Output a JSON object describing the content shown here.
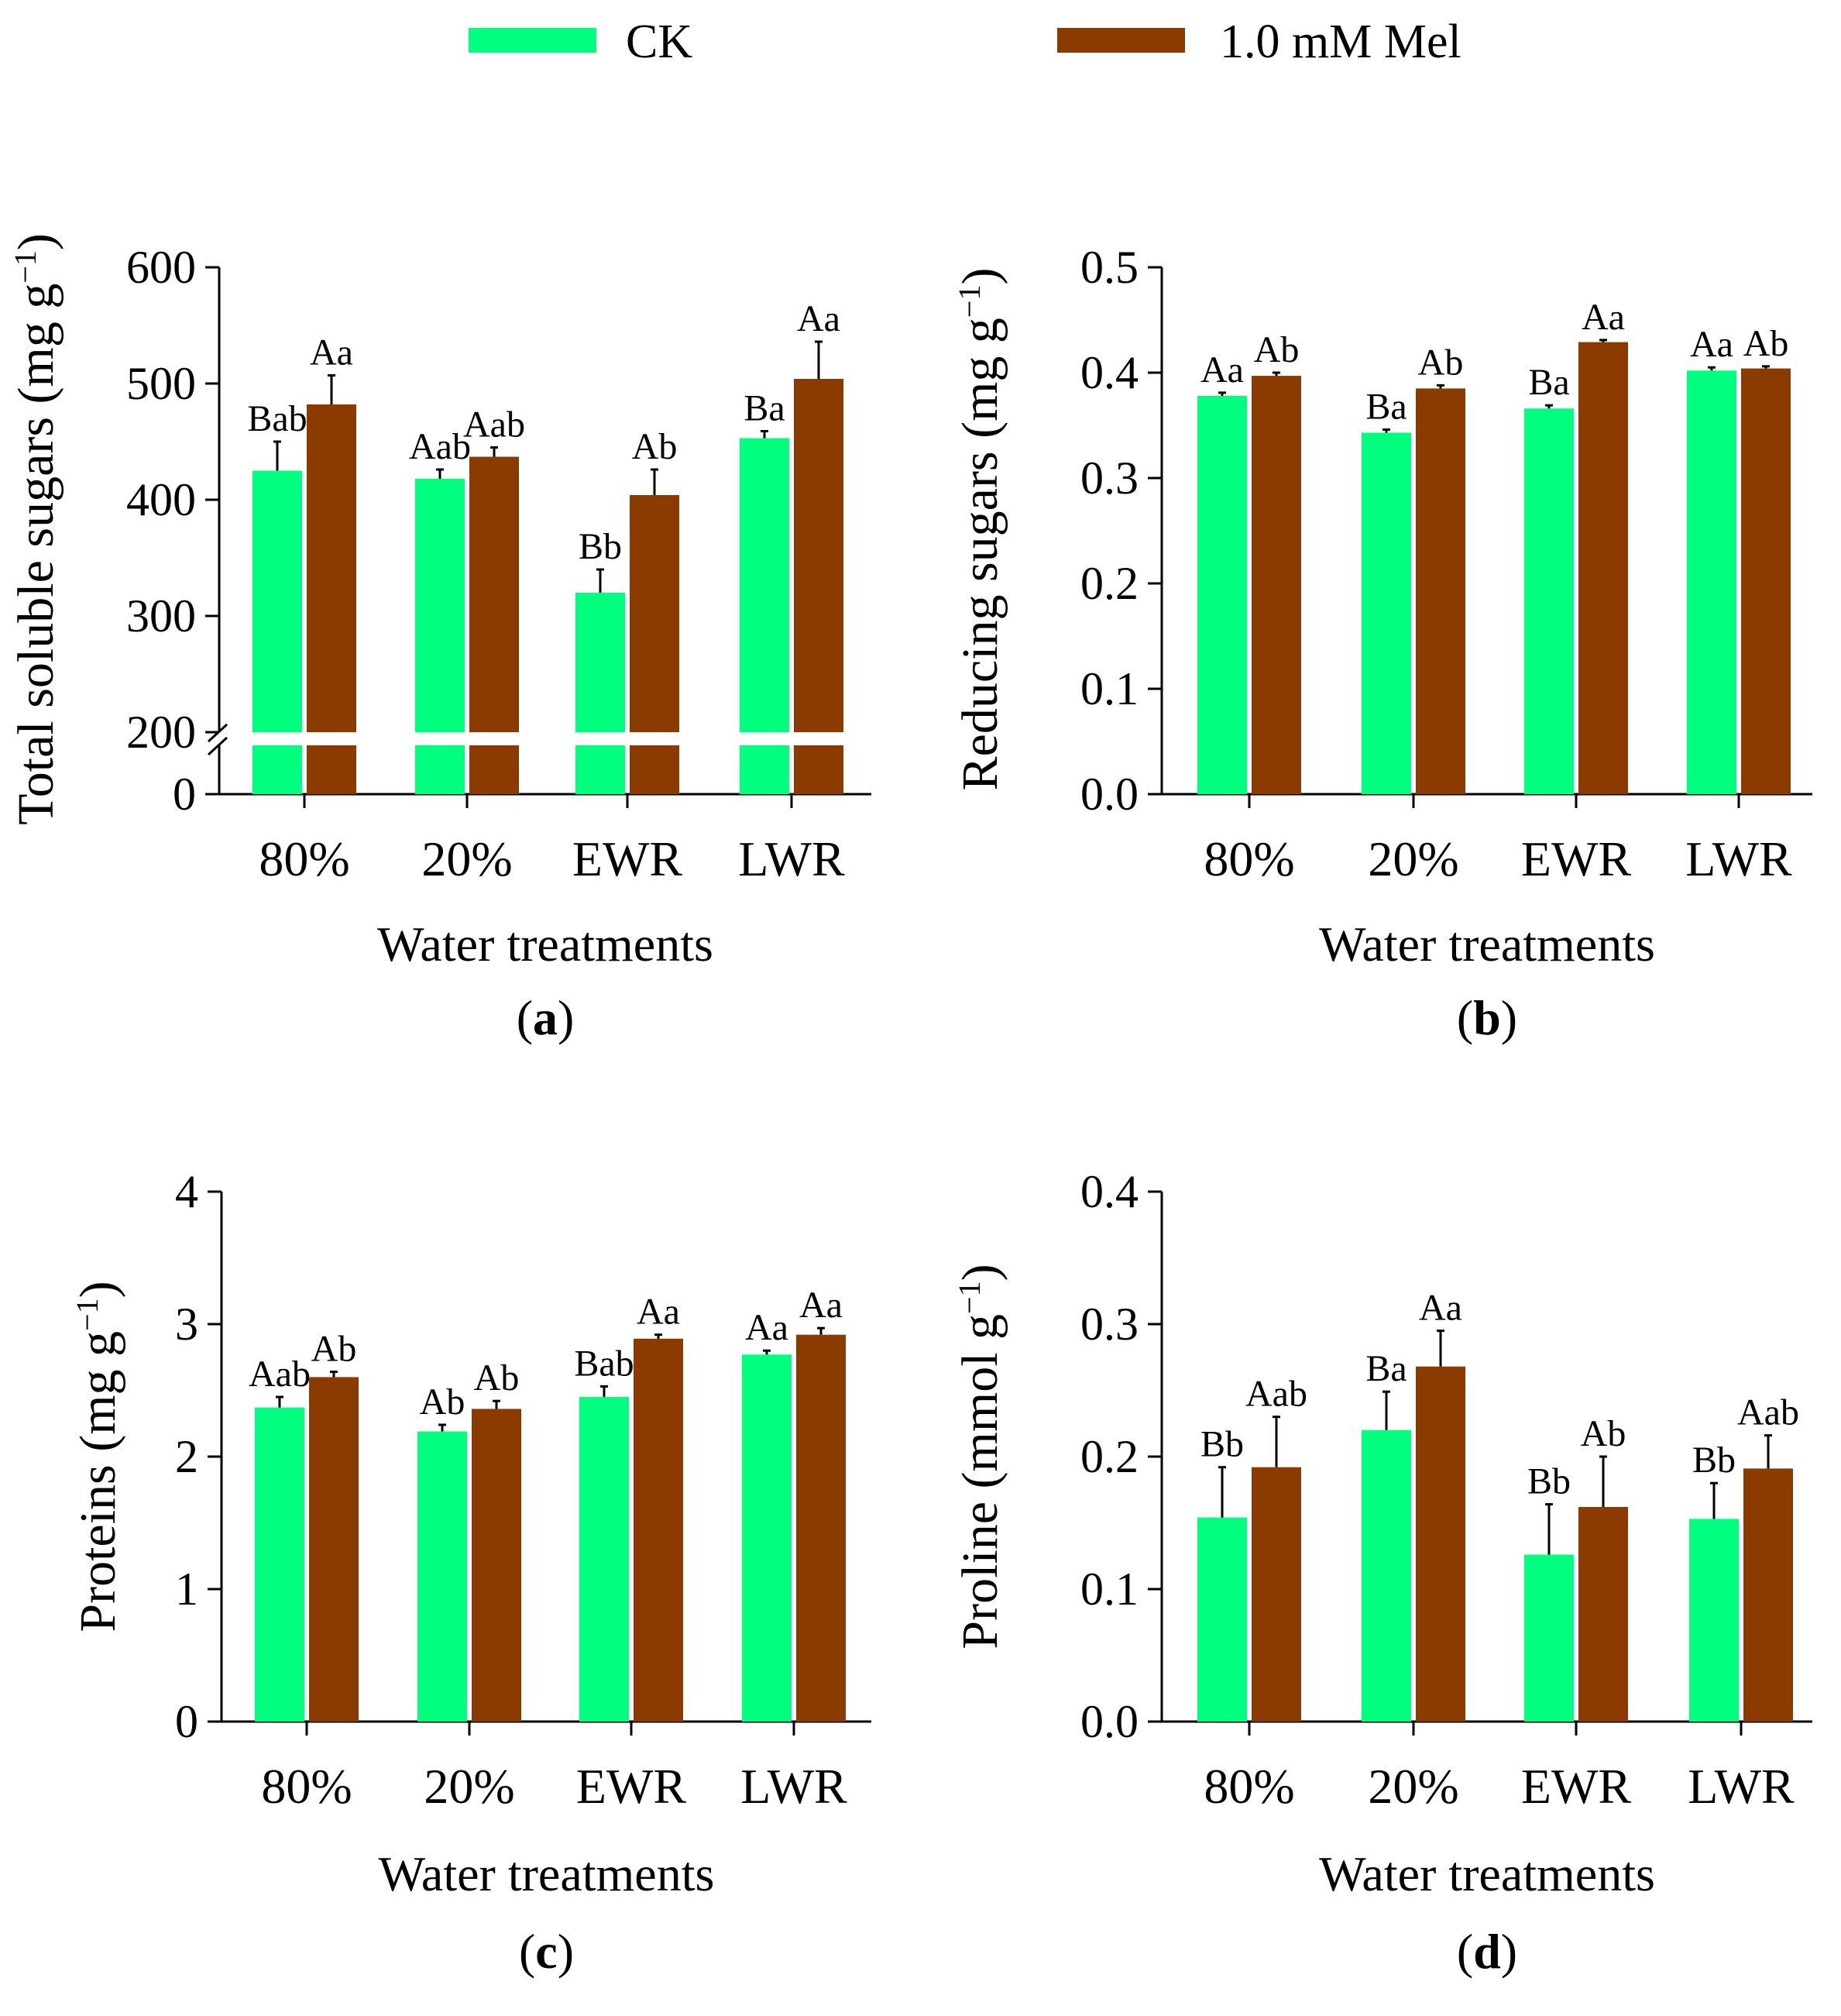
{
  "legend": {
    "items": [
      {
        "label": "CK",
        "color": "#00FF7F"
      },
      {
        "label": "1.0 mM Mel",
        "color": "#8B3A00"
      }
    ]
  },
  "colors": {
    "ck": "#00FF7F",
    "mel": "#8B3A00",
    "axis": "#000000"
  },
  "chart_data": [
    {
      "panel": "a",
      "panel_label": "a",
      "type": "bar",
      "categories": [
        "80%",
        "20%",
        "EWR",
        "LWR"
      ],
      "xlabel": "Water treatments",
      "ylabel": "Total soluble sugars (mg g",
      "ylabel_sup": "−1",
      "ylabel_close": ")",
      "ylim": [
        0,
        600
      ],
      "axis_break": {
        "lower": [
          0,
          200
        ],
        "upper": [
          200,
          600
        ]
      },
      "yticks": [
        0,
        200,
        300,
        400,
        500,
        600
      ],
      "ytick_labels": [
        "0",
        "200",
        "300",
        "400",
        "500",
        "600"
      ],
      "series": [
        {
          "name": "CK",
          "values": [
            425,
            418,
            320,
            453
          ],
          "errors": [
            25,
            8,
            20,
            6
          ],
          "labels": [
            "Bab",
            "Aab",
            "Bb",
            "Ba"
          ]
        },
        {
          "name": "1.0 mM Mel",
          "values": [
            482,
            437,
            404,
            504
          ],
          "errors": [
            25,
            8,
            22,
            32
          ],
          "labels": [
            "Aa",
            "Aab",
            "Ab",
            "Aa"
          ]
        }
      ]
    },
    {
      "panel": "b",
      "panel_label": "b",
      "type": "bar",
      "categories": [
        "80%",
        "20%",
        "EWR",
        "LWR"
      ],
      "xlabel": "Water treatments",
      "ylabel": "Reducing sugars (mg g",
      "ylabel_sup": "−1",
      "ylabel_close": ")",
      "ylim": [
        0,
        0.5
      ],
      "yticks": [
        0,
        0.1,
        0.2,
        0.3,
        0.4,
        0.5
      ],
      "ytick_labels": [
        "0.0",
        "0.1",
        "0.2",
        "0.3",
        "0.4",
        "0.5"
      ],
      "series": [
        {
          "name": "CK",
          "values": [
            0.378,
            0.343,
            0.366,
            0.402
          ],
          "errors": [
            0.003,
            0.003,
            0.003,
            0.003
          ],
          "labels": [
            "Aa",
            "Ba",
            "Ba",
            "Aa"
          ]
        },
        {
          "name": "1.0 mM Mel",
          "values": [
            0.397,
            0.385,
            0.429,
            0.404
          ],
          "errors": [
            0.003,
            0.003,
            0.002,
            0.002
          ],
          "labels": [
            "Ab",
            "Ab",
            "Aa",
            "Ab"
          ]
        }
      ]
    },
    {
      "panel": "c",
      "panel_label": "c",
      "type": "bar",
      "categories": [
        "80%",
        "20%",
        "EWR",
        "LWR"
      ],
      "xlabel": "Water treatments",
      "ylabel": "Proteins (mg g",
      "ylabel_sup": "−1",
      "ylabel_close": ")",
      "ylim": [
        0,
        4
      ],
      "yticks": [
        0,
        1,
        2,
        3,
        4
      ],
      "ytick_labels": [
        "0",
        "1",
        "2",
        "3",
        "4"
      ],
      "series": [
        {
          "name": "CK",
          "values": [
            2.37,
            2.19,
            2.45,
            2.77
          ],
          "errors": [
            0.08,
            0.05,
            0.08,
            0.03
          ],
          "labels": [
            "Aab",
            "Ab",
            "Bab",
            "Aa"
          ]
        },
        {
          "name": "1.0 mM Mel",
          "values": [
            2.6,
            2.36,
            2.89,
            2.92
          ],
          "errors": [
            0.04,
            0.06,
            0.03,
            0.05
          ],
          "labels": [
            "Ab",
            "Ab",
            "Aa",
            "Aa"
          ]
        }
      ]
    },
    {
      "panel": "d",
      "panel_label": "d",
      "type": "bar",
      "categories": [
        "80%",
        "20%",
        "EWR",
        "LWR"
      ],
      "xlabel": "Water treatments",
      "ylabel": "Proline (mmol g",
      "ylabel_sup": "−1",
      "ylabel_close": ")",
      "ylim": [
        0,
        0.4
      ],
      "yticks": [
        0,
        0.1,
        0.2,
        0.3,
        0.4
      ],
      "ytick_labels": [
        "0.0",
        "0.1",
        "0.2",
        "0.3",
        "0.4"
      ],
      "series": [
        {
          "name": "CK",
          "values": [
            0.154,
            0.22,
            0.126,
            0.153
          ],
          "errors": [
            0.038,
            0.029,
            0.038,
            0.027
          ],
          "labels": [
            "Bb",
            "Ba",
            "Bb",
            "Bb"
          ]
        },
        {
          "name": "1.0 mM Mel",
          "values": [
            0.192,
            0.268,
            0.162,
            0.191
          ],
          "errors": [
            0.038,
            0.027,
            0.038,
            0.025
          ],
          "labels": [
            "Aab",
            "Aa",
            "Ab",
            "Aab"
          ]
        }
      ]
    }
  ]
}
